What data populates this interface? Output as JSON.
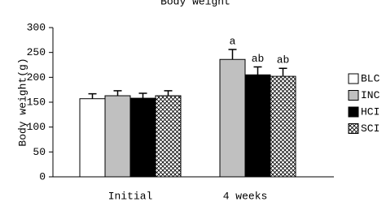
{
  "chart_data": {
    "type": "bar",
    "title": "Body weight",
    "ylabel": "Body weight(g)",
    "categories": [
      "Initial",
      "4 weeks"
    ],
    "ylim": [
      0,
      300
    ],
    "yticks": [
      0,
      50,
      100,
      150,
      200,
      250,
      300
    ],
    "legend": "right",
    "series": [
      {
        "name": "BLC",
        "color": "#ffffff",
        "values": [
          157,
          null
        ],
        "errors": [
          10,
          null
        ],
        "annotations": [
          null,
          null
        ]
      },
      {
        "name": "INC",
        "color": "#c0c0c0",
        "values": [
          163,
          236
        ],
        "errors": [
          10,
          20
        ],
        "annotations": [
          null,
          "a"
        ]
      },
      {
        "name": "HCI",
        "color": "#000000",
        "values": [
          158,
          205
        ],
        "errors": [
          10,
          16
        ],
        "annotations": [
          null,
          "ab"
        ]
      },
      {
        "name": "SCI",
        "color": "#ffffff",
        "hatch": true,
        "values": [
          163,
          202
        ],
        "errors": [
          10,
          16
        ],
        "annotations": [
          null,
          "ab"
        ]
      }
    ]
  }
}
